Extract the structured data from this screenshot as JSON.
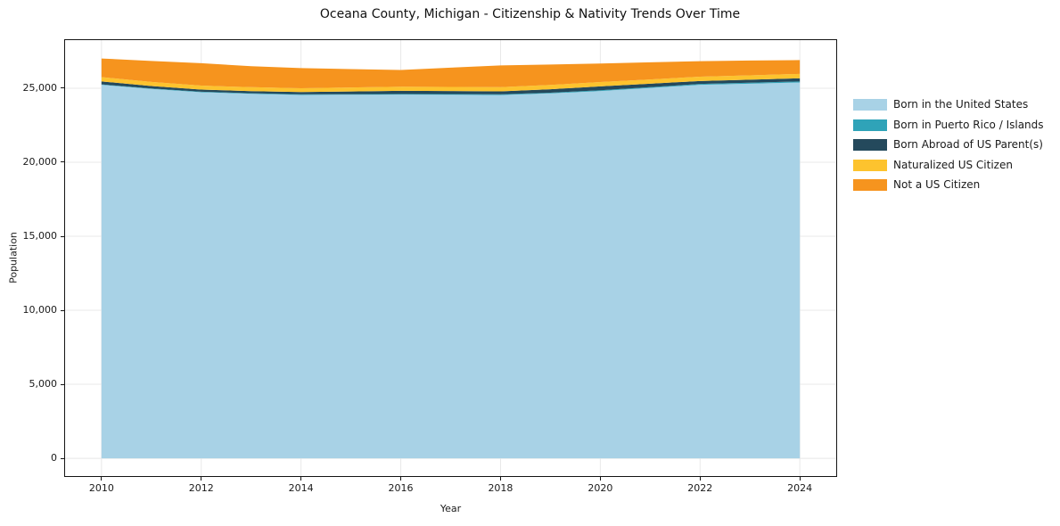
{
  "title": "Oceana County, Michigan - Citizenship & Nativity Trends Over Time",
  "x_axis": {
    "label": "Year",
    "tick_labels": [
      "2010",
      "2012",
      "2014",
      "2016",
      "2018",
      "2020",
      "2022",
      "2024"
    ]
  },
  "y_axis": {
    "label": "Population",
    "tick_labels": [
      "0",
      "5,000",
      "10,000",
      "15,000",
      "20,000",
      "25,000"
    ]
  },
  "legend": {
    "items": [
      {
        "label": "Born in the United States",
        "color": "#a8d2e6"
      },
      {
        "label": "Born in Puerto Rico / Islands",
        "color": "#2fa3b8"
      },
      {
        "label": "Born Abroad of US Parent(s)",
        "color": "#24495c"
      },
      {
        "label": "Naturalized US Citizen",
        "color": "#fdc32e"
      },
      {
        "label": "Not a US Citizen",
        "color": "#f6941e"
      }
    ]
  },
  "chart_data": {
    "type": "area",
    "stacked": true,
    "title": "Oceana County, Michigan - Citizenship & Nativity Trends Over Time",
    "xlabel": "Year",
    "ylabel": "Population",
    "x": [
      2010,
      2011,
      2012,
      2013,
      2014,
      2015,
      2016,
      2017,
      2018,
      2019,
      2020,
      2021,
      2022,
      2023,
      2024
    ],
    "series": [
      {
        "name": "Born in the United States",
        "color": "#a8d2e6",
        "values": [
          25230,
          24950,
          24730,
          24620,
          24550,
          24560,
          24570,
          24560,
          24540,
          24650,
          24810,
          25020,
          25230,
          25310,
          25390
        ]
      },
      {
        "name": "Born in Puerto Rico / Islands",
        "color": "#2fa3b8",
        "values": [
          30,
          30,
          35,
          40,
          40,
          40,
          45,
          45,
          50,
          50,
          55,
          55,
          60,
          65,
          70
        ]
      },
      {
        "name": "Born Abroad of US Parent(s)",
        "color": "#24495c",
        "values": [
          200,
          170,
          140,
          145,
          150,
          180,
          210,
          205,
          200,
          230,
          260,
          230,
          200,
          205,
          210
        ]
      },
      {
        "name": "Naturalized US Citizen",
        "color": "#fdc32e",
        "values": [
          290,
          280,
          270,
          265,
          260,
          270,
          280,
          280,
          280,
          290,
          295,
          290,
          290,
          295,
          300
        ]
      },
      {
        "name": "Not a US Citizen",
        "color": "#f6941e",
        "values": [
          1260,
          1410,
          1515,
          1420,
          1360,
          1240,
          1125,
          1300,
          1470,
          1380,
          1250,
          1155,
          1050,
          995,
          930
        ]
      }
    ],
    "totals": [
      27010,
      26840,
      26690,
      26490,
      26360,
      26290,
      26230,
      26390,
      26540,
      26600,
      26670,
      26750,
      26830,
      26870,
      26900
    ],
    "xlim": [
      2009.27,
      2024.73
    ],
    "ylim": [
      -1200,
      28250
    ],
    "x_ticks": [
      2010,
      2012,
      2014,
      2016,
      2018,
      2020,
      2022,
      2024
    ],
    "y_ticks": [
      0,
      5000,
      10000,
      15000,
      20000,
      25000
    ],
    "grid": true,
    "grid_color": "#e8e8e8",
    "legend_position": "center right outside"
  }
}
